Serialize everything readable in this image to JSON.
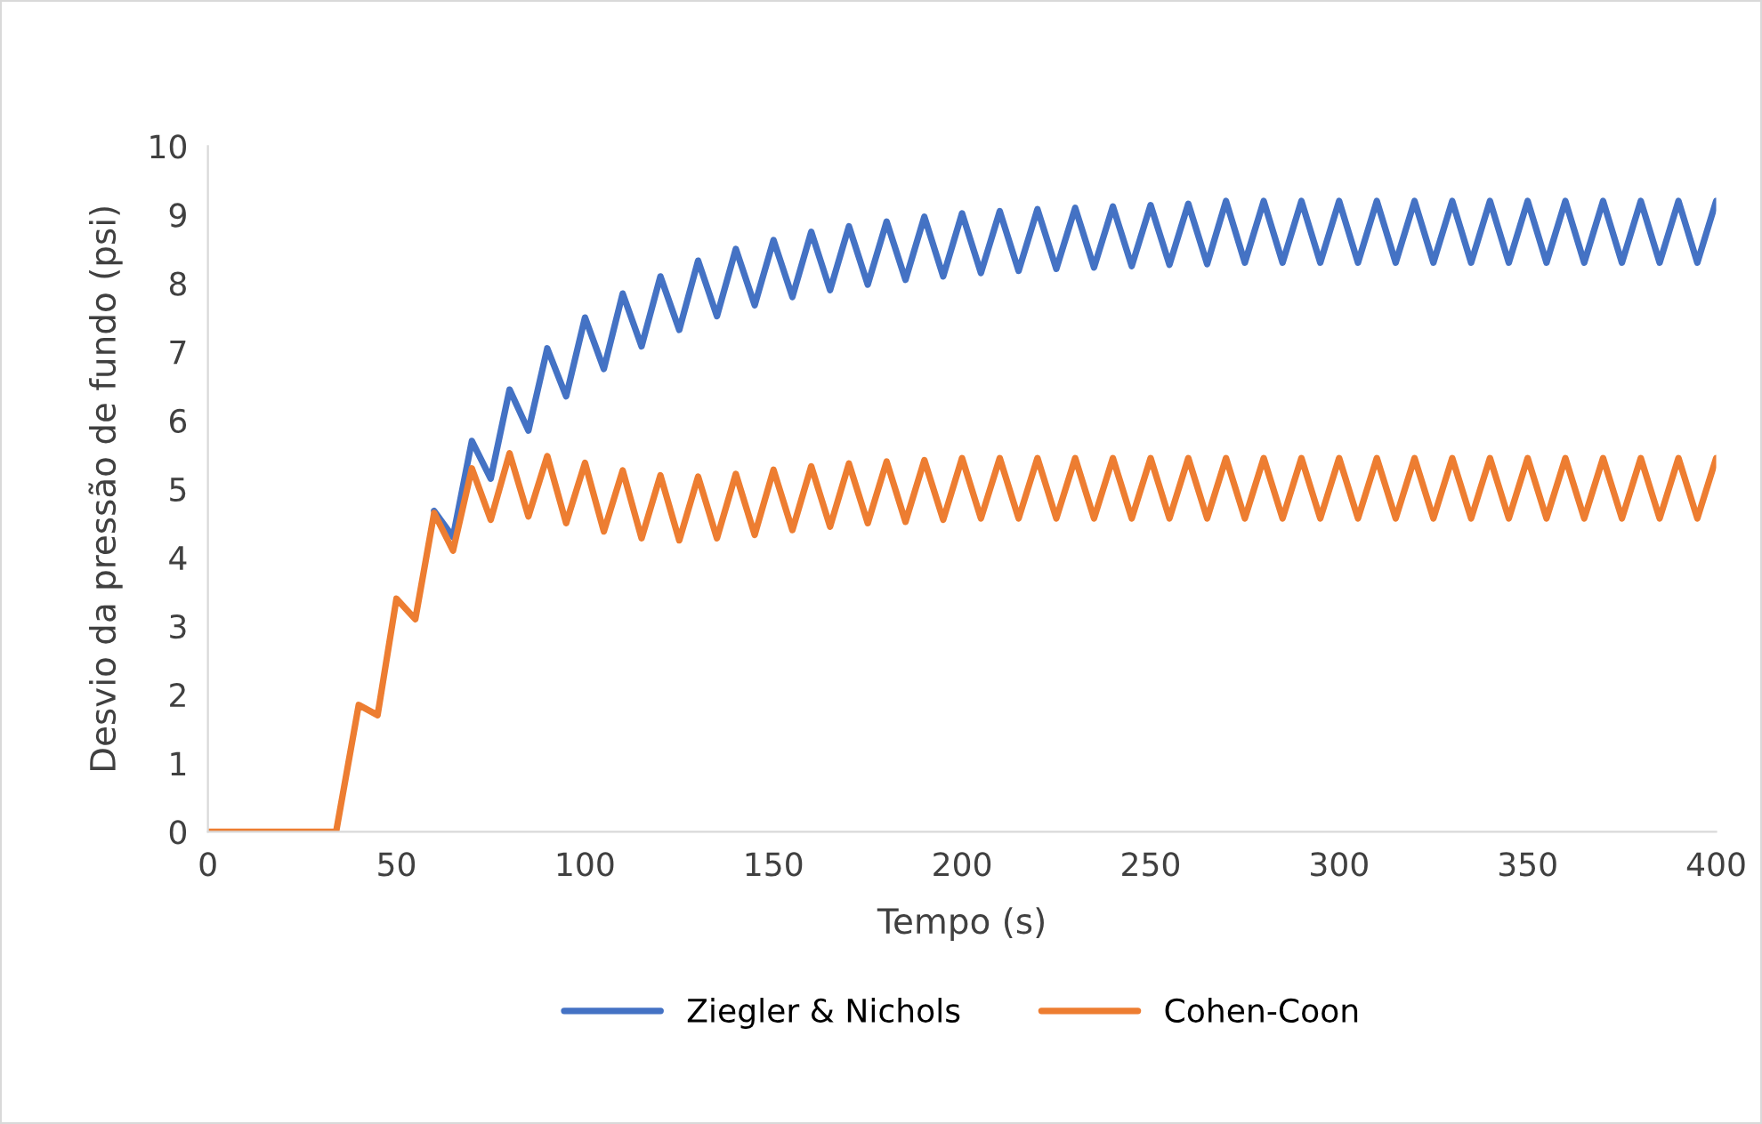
{
  "chart_data": {
    "type": "line",
    "xlabel": "Tempo (s)",
    "ylabel": "Desvio da pressão de fundo (psi)",
    "x": [
      0,
      34,
      40,
      45,
      50,
      55,
      60,
      65,
      70,
      75,
      80,
      85,
      90,
      95,
      100,
      105,
      110,
      115,
      120,
      125,
      130,
      135,
      140,
      145,
      150,
      155,
      160,
      165,
      170,
      175,
      180,
      185,
      190,
      195,
      200,
      205,
      210,
      215,
      220,
      225,
      230,
      235,
      240,
      245,
      250,
      255,
      260,
      265,
      270,
      275,
      280,
      285,
      290,
      295,
      300,
      305,
      310,
      315,
      320,
      325,
      330,
      335,
      340,
      345,
      350,
      355,
      360,
      365,
      370,
      375,
      380,
      385,
      390,
      395,
      400
    ],
    "series": [
      {
        "name": "Ziegler & Nichols",
        "color": "#4472c4",
        "values": [
          null,
          null,
          null,
          null,
          null,
          null,
          4.68,
          4.3,
          5.7,
          5.15,
          6.45,
          5.85,
          7.05,
          6.35,
          7.5,
          6.75,
          7.85,
          7.08,
          8.1,
          7.32,
          8.33,
          7.52,
          8.5,
          7.68,
          8.63,
          7.8,
          8.75,
          7.9,
          8.83,
          7.98,
          8.9,
          8.05,
          8.97,
          8.1,
          9.02,
          8.15,
          9.05,
          8.18,
          9.08,
          8.21,
          9.1,
          8.23,
          9.12,
          8.25,
          9.14,
          8.27,
          9.16,
          8.28,
          9.2,
          8.3,
          9.2,
          8.3,
          9.2,
          8.3,
          9.2,
          8.3,
          9.2,
          8.3,
          9.2,
          8.3,
          9.2,
          8.3,
          9.2,
          8.3,
          9.2,
          8.3,
          9.2,
          8.3,
          9.2,
          8.3,
          9.2,
          8.3,
          9.2,
          8.3,
          9.2
        ]
      },
      {
        "name": "Cohen-Coon",
        "color": "#ed7d31",
        "values": [
          0,
          0,
          1.85,
          1.7,
          3.4,
          3.1,
          4.65,
          4.1,
          5.3,
          4.55,
          5.52,
          4.6,
          5.48,
          4.5,
          5.38,
          4.38,
          5.27,
          4.28,
          5.2,
          4.25,
          5.18,
          4.28,
          5.22,
          4.33,
          5.28,
          4.4,
          5.33,
          4.45,
          5.37,
          4.5,
          5.4,
          4.52,
          5.42,
          4.55,
          5.45,
          4.57,
          5.45,
          4.57,
          5.45,
          4.57,
          5.45,
          4.57,
          5.45,
          4.57,
          5.45,
          4.57,
          5.45,
          4.57,
          5.45,
          4.57,
          5.45,
          4.57,
          5.45,
          4.57,
          5.45,
          4.57,
          5.45,
          4.57,
          5.45,
          4.57,
          5.45,
          4.57,
          5.45,
          4.57,
          5.45,
          4.57,
          5.45,
          4.57,
          5.45,
          4.57,
          5.45,
          4.57,
          5.45,
          4.57,
          5.45
        ]
      }
    ],
    "xlim": [
      0,
      400
    ],
    "xticks": [
      0,
      50,
      100,
      150,
      200,
      250,
      300,
      350,
      400
    ],
    "ylim": [
      0,
      10
    ],
    "yticks": [
      0,
      1,
      2,
      3,
      4,
      5,
      6,
      7,
      8,
      9,
      10
    ],
    "grid": false,
    "legend": "bottom",
    "marker": "none",
    "line_style": "solid"
  }
}
